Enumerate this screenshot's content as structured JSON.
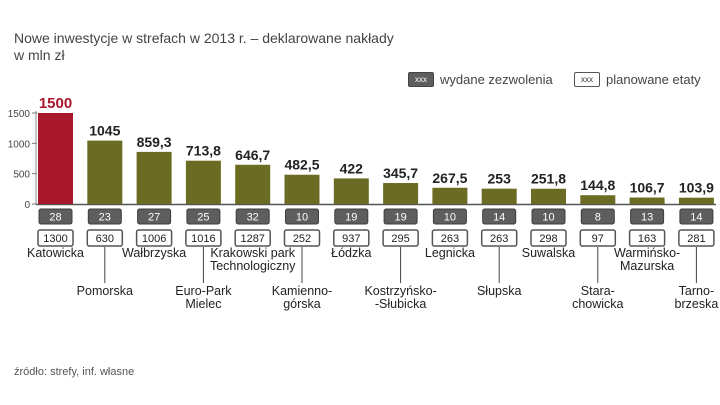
{
  "title": "Nowe inwestycje w strefach w 2013 r. – deklarowane nakłady",
  "subtitle": "w mln zł",
  "legend": {
    "chip_text": "xxx",
    "permits_label": "wydane zezwolenia",
    "jobs_label": "planowane etaty"
  },
  "source": "źródło: strefy, inf. własne",
  "colors": {
    "highlight": "#a8182a",
    "bar": "#6b6b24",
    "permit_box": "#5e5e5e",
    "axis": "#555555"
  },
  "chart_data": {
    "type": "bar",
    "ylim": [
      0,
      1500
    ],
    "yticks": [
      "1500",
      "1000",
      "500",
      "0"
    ],
    "grid": false,
    "categories": [
      "Katowicka",
      "Pomorska",
      "Wałbrzyska",
      "Euro-Park Mielec",
      "Krakowski park Technologiczny",
      "Kamienno-górska",
      "Łódzka",
      "Kostrzyńsko-Słubicka",
      "Legnicka",
      "Słupska",
      "Suwalska",
      "Stara-chowicka",
      "Warmińsko-Mazurska",
      "Tarno-brzeska"
    ],
    "category_lines": [
      [
        "Katowicka"
      ],
      [
        "Pomorska"
      ],
      [
        "Wałbrzyska"
      ],
      [
        "Euro-Park",
        "Mielec"
      ],
      [
        "Krakowski park",
        "Technologiczny"
      ],
      [
        "Kamienno-",
        "górska"
      ],
      [
        "Łódzka"
      ],
      [
        "Kostrzyńsko-",
        "-Słubicka"
      ],
      [
        "Legnicka"
      ],
      [
        "Słupska"
      ],
      [
        "Suwalska"
      ],
      [
        "Stara-",
        "chowicka"
      ],
      [
        "Warmińsko-",
        "Mazurska"
      ],
      [
        "Tarno-",
        "brzeska"
      ]
    ],
    "values": [
      1500,
      1045,
      859.3,
      713.8,
      646.7,
      482.5,
      422,
      345.7,
      267.5,
      253,
      251.8,
      144.8,
      106.7,
      103.9
    ],
    "value_labels": [
      "1500",
      "1045",
      "859,3",
      "713,8",
      "646,7",
      "482,5",
      "422",
      "345,7",
      "267,5",
      "253",
      "251,8",
      "144,8",
      "106,7",
      "103,9"
    ],
    "permits": [
      "28",
      "23",
      "27",
      "25",
      "32",
      "10",
      "19",
      "19",
      "10",
      "14",
      "10",
      "8",
      "13",
      "14"
    ],
    "jobs": [
      "1300",
      "630",
      "1006",
      "1016",
      "1287",
      "252",
      "937",
      "295",
      "263",
      "263",
      "298",
      "97",
      "163",
      "281"
    ]
  }
}
